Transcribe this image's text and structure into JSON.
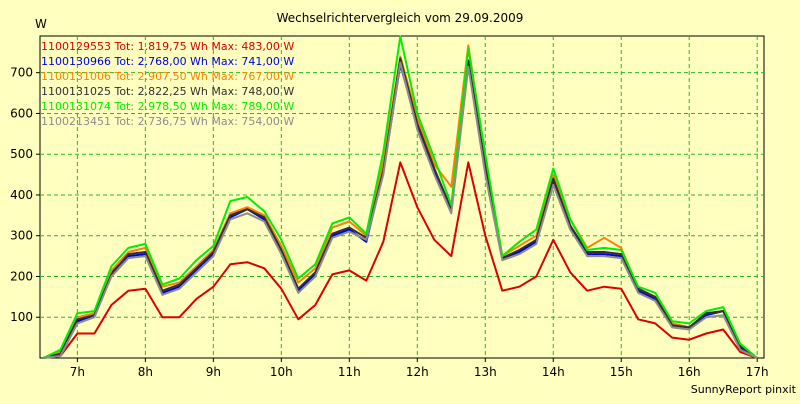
{
  "chart_data": {
    "type": "line",
    "title": "Wechselrichtervergleich vom 29.09.2009",
    "ylabel": "W",
    "xlabel": "",
    "footer": "SunnyReport pinxit",
    "x_tick_labels": [
      "7h",
      "8h",
      "9h",
      "10h",
      "11h",
      "12h",
      "13h",
      "14h",
      "15h",
      "16h",
      "17h"
    ],
    "x_tick_values": [
      7,
      8,
      9,
      10,
      11,
      12,
      13,
      14,
      15,
      16,
      17
    ],
    "y_tick_values": [
      100,
      200,
      300,
      400,
      500,
      600,
      700
    ],
    "y_tick_labels": [
      "100",
      "200",
      "300",
      "400",
      "500",
      "600",
      "700"
    ],
    "xlim": [
      6.45,
      17.1
    ],
    "ylim": [
      0,
      790
    ],
    "grid": true,
    "legend_position": "top-left",
    "x": [
      6.5,
      6.75,
      7.0,
      7.25,
      7.5,
      7.75,
      8.0,
      8.25,
      8.5,
      8.75,
      9.0,
      9.25,
      9.5,
      9.75,
      10.0,
      10.25,
      10.5,
      10.75,
      11.0,
      11.25,
      11.5,
      11.75,
      12.0,
      12.25,
      12.5,
      12.75,
      13.0,
      13.25,
      13.5,
      13.75,
      14.0,
      14.25,
      14.5,
      14.75,
      15.0,
      15.25,
      15.5,
      15.75,
      16.0,
      16.25,
      16.5,
      16.75,
      17.0
    ],
    "series": [
      {
        "name": "1100129553",
        "legend_text": "1100129553 Tot: 1.819,75 Wh Max: 483,00 W",
        "color": "#dd0000",
        "values": [
          0,
          5,
          60,
          60,
          130,
          165,
          170,
          100,
          100,
          145,
          175,
          230,
          235,
          220,
          170,
          95,
          130,
          205,
          215,
          190,
          285,
          480,
          370,
          290,
          250,
          480,
          300,
          165,
          175,
          200,
          290,
          210,
          165,
          175,
          170,
          95,
          85,
          50,
          45,
          60,
          70,
          15,
          0
        ]
      },
      {
        "name": "1100130966",
        "legend_text": "1100130966 Tot: 2.768,00 Wh Max: 741,00 W",
        "color": "#0000dd",
        "values": [
          0,
          10,
          90,
          105,
          210,
          250,
          255,
          160,
          175,
          215,
          255,
          345,
          365,
          340,
          260,
          165,
          205,
          300,
          315,
          285,
          455,
          720,
          570,
          460,
          365,
          720,
          460,
          245,
          260,
          285,
          430,
          320,
          255,
          255,
          250,
          165,
          145,
          80,
          75,
          105,
          115,
          25,
          0
        ]
      },
      {
        "name": "1100131006",
        "legend_text": "1100131006 Tot: 2.907,50 Wh Max: 767,00 W",
        "color": "#ff8000",
        "values": [
          0,
          15,
          100,
          110,
          215,
          260,
          270,
          175,
          185,
          225,
          265,
          355,
          370,
          350,
          275,
          185,
          220,
          320,
          335,
          300,
          480,
          740,
          590,
          475,
          420,
          767,
          490,
          250,
          275,
          300,
          450,
          340,
          270,
          295,
          270,
          170,
          150,
          85,
          75,
          110,
          115,
          30,
          0
        ]
      },
      {
        "name": "1100131025",
        "legend_text": "1100131025 Tot: 2.822,25 Wh Max: 748,00 W",
        "color": "#303030",
        "values": [
          0,
          10,
          95,
          105,
          205,
          255,
          260,
          165,
          180,
          220,
          260,
          350,
          365,
          345,
          265,
          170,
          210,
          305,
          320,
          295,
          460,
          735,
          575,
          465,
          365,
          730,
          470,
          245,
          265,
          290,
          440,
          325,
          260,
          260,
          255,
          170,
          150,
          80,
          75,
          110,
          115,
          30,
          0
        ]
      },
      {
        "name": "1100131074",
        "legend_text": "1100131074 Tot: 2.978,50 Wh Max: 789,00 W",
        "color": "#00ee00",
        "values": [
          0,
          20,
          110,
          115,
          225,
          270,
          280,
          180,
          195,
          240,
          275,
          385,
          395,
          360,
          290,
          195,
          230,
          330,
          345,
          305,
          505,
          789,
          600,
          490,
          375,
          760,
          500,
          250,
          285,
          315,
          465,
          340,
          265,
          270,
          265,
          175,
          160,
          90,
          85,
          115,
          125,
          35,
          0
        ]
      },
      {
        "name": "1100213451",
        "legend_text": "1100213451 Tot: 2.736,75 Wh Max: 754,00 W",
        "color": "#8c8c8c",
        "values": [
          0,
          5,
          85,
          100,
          200,
          245,
          250,
          155,
          170,
          210,
          250,
          340,
          355,
          335,
          255,
          160,
          200,
          295,
          310,
          290,
          450,
          725,
          560,
          450,
          355,
          715,
          450,
          240,
          255,
          280,
          425,
          315,
          250,
          250,
          245,
          160,
          140,
          75,
          70,
          100,
          105,
          20,
          0
        ]
      }
    ]
  }
}
